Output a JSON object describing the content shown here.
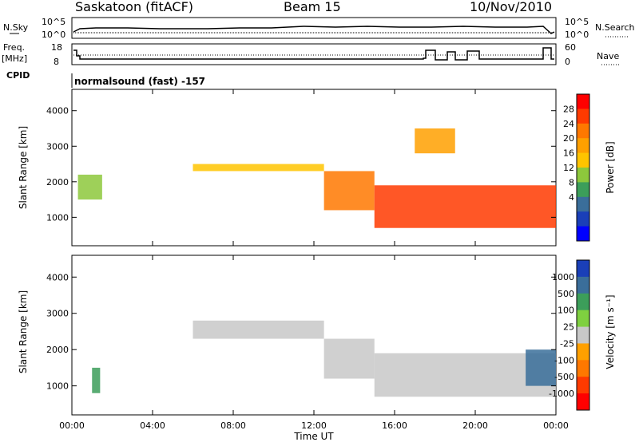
{
  "header": {
    "station": "Saskatoon (fitACF)",
    "beam": "Beam 15",
    "date": "10/Nov/2010"
  },
  "panels": {
    "noise": {
      "left_label": "N.Sky",
      "right_label": "N.Search",
      "left_ticks": [
        "10^5",
        "10^0"
      ],
      "right_ticks": [
        "10^5",
        "10^0"
      ]
    },
    "freq": {
      "left_label_1": "Freq.",
      "left_label_2": "[MHz]",
      "right_label": "Nave",
      "left_ticks": [
        "18",
        "8"
      ],
      "right_ticks": [
        "60",
        "0"
      ]
    },
    "cpid": {
      "label": "CPID",
      "text": "normalsound (fast) -157"
    }
  },
  "chart_data": [
    {
      "type": "heatmap",
      "title": "Power",
      "ylabel": "Slant Range [km]",
      "ylim": [
        200,
        4600
      ],
      "yticks": [
        1000,
        2000,
        3000,
        4000
      ],
      "xlim": [
        0,
        24
      ],
      "colorbar": {
        "label": "Power [dB]",
        "ticks": [
          "28",
          "24",
          "20",
          "16",
          "12",
          "8",
          "4"
        ],
        "colors": [
          "#ff0000",
          "#ff3a00",
          "#ff7800",
          "#ffa000",
          "#ffc400",
          "#8dc83c",
          "#3c9e5a",
          "#3a6e9a",
          "#1a3fb8",
          "#0000ff"
        ]
      },
      "regions": [
        {
          "t0": 6.0,
          "t1": 12.5,
          "r0": 2300,
          "r1": 2500,
          "value": 16
        },
        {
          "t0": 12.5,
          "t1": 15.0,
          "r0": 1200,
          "r1": 2300,
          "value": 22
        },
        {
          "t0": 15.0,
          "t1": 24.0,
          "r0": 700,
          "r1": 1900,
          "value": 26
        },
        {
          "t0": 0.3,
          "t1": 1.5,
          "r0": 1500,
          "r1": 2200,
          "value": 12
        },
        {
          "t0": 17.0,
          "t1": 19.0,
          "r0": 2800,
          "r1": 3500,
          "value": 18
        }
      ]
    },
    {
      "type": "heatmap",
      "title": "Velocity",
      "ylabel": "Slant Range [km]",
      "xlabel": "Time UT",
      "ylim": [
        200,
        4600
      ],
      "yticks": [
        1000,
        2000,
        3000,
        4000
      ],
      "xlim": [
        0,
        24
      ],
      "xticks": [
        "00:00",
        "04:00",
        "08:00",
        "12:00",
        "16:00",
        "20:00",
        "00:00"
      ],
      "colorbar": {
        "label": "Velocity [m s⁻¹]",
        "ticks": [
          "1000",
          "500",
          "100",
          "25",
          "-25",
          "-100",
          "-500",
          "-1000"
        ],
        "colors": [
          "#1a3fb8",
          "#3a6e9a",
          "#3c9e5a",
          "#7fd040",
          "#c8c8c8",
          "#ffa000",
          "#ff7800",
          "#ff3a00",
          "#ff0000"
        ]
      },
      "regions": [
        {
          "t0": 6.0,
          "t1": 12.5,
          "r0": 2300,
          "r1": 2800,
          "value": 0
        },
        {
          "t0": 12.5,
          "t1": 15.0,
          "r0": 1200,
          "r1": 2300,
          "value": 0
        },
        {
          "t0": 15.0,
          "t1": 24.0,
          "r0": 700,
          "r1": 1900,
          "value": 0
        },
        {
          "t0": 1.0,
          "t1": 1.4,
          "r0": 800,
          "r1": 1500,
          "value": 80
        },
        {
          "t0": 22.5,
          "t1": 24.0,
          "r0": 1000,
          "r1": 2000,
          "value": 300
        }
      ]
    }
  ]
}
